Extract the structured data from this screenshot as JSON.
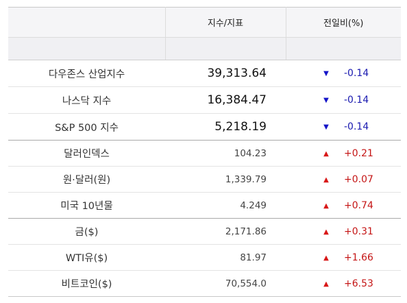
{
  "header": {
    "col_index": "지수/지표",
    "col_change": "전일비(%)"
  },
  "colors": {
    "up": "#d81818",
    "down": "#1515c8"
  },
  "rows": [
    {
      "name": "다우존스 산업지수",
      "value": "39,313.64",
      "direction": "down",
      "arrow": "▼",
      "change": "-0.14"
    },
    {
      "name": "나스닥 지수",
      "value": "16,384.47",
      "direction": "down",
      "arrow": "▼",
      "change": "-0.14"
    },
    {
      "name": "S&P 500 지수",
      "value": "5,218.19",
      "direction": "down",
      "arrow": "▼",
      "change": "-0.14"
    },
    {
      "name": "달러인덱스",
      "value": "104.23",
      "direction": "up",
      "arrow": "▲",
      "change": "+0.21"
    },
    {
      "name": "원·달러(원)",
      "value": "1,339.79",
      "direction": "up",
      "arrow": "▲",
      "change": "+0.07"
    },
    {
      "name": "미국 10년물",
      "value": "4.249",
      "direction": "up",
      "arrow": "▲",
      "change": "+0.74"
    },
    {
      "name": "금($)",
      "value": "2,171.86",
      "direction": "up",
      "arrow": "▲",
      "change": "+0.31"
    },
    {
      "name": "WTI유($)",
      "value": "81.97",
      "direction": "up",
      "arrow": "▲",
      "change": "+1.66"
    },
    {
      "name": "비트코인($)",
      "value": "70,554.0",
      "direction": "up",
      "arrow": "▲",
      "change": "+6.53"
    }
  ]
}
